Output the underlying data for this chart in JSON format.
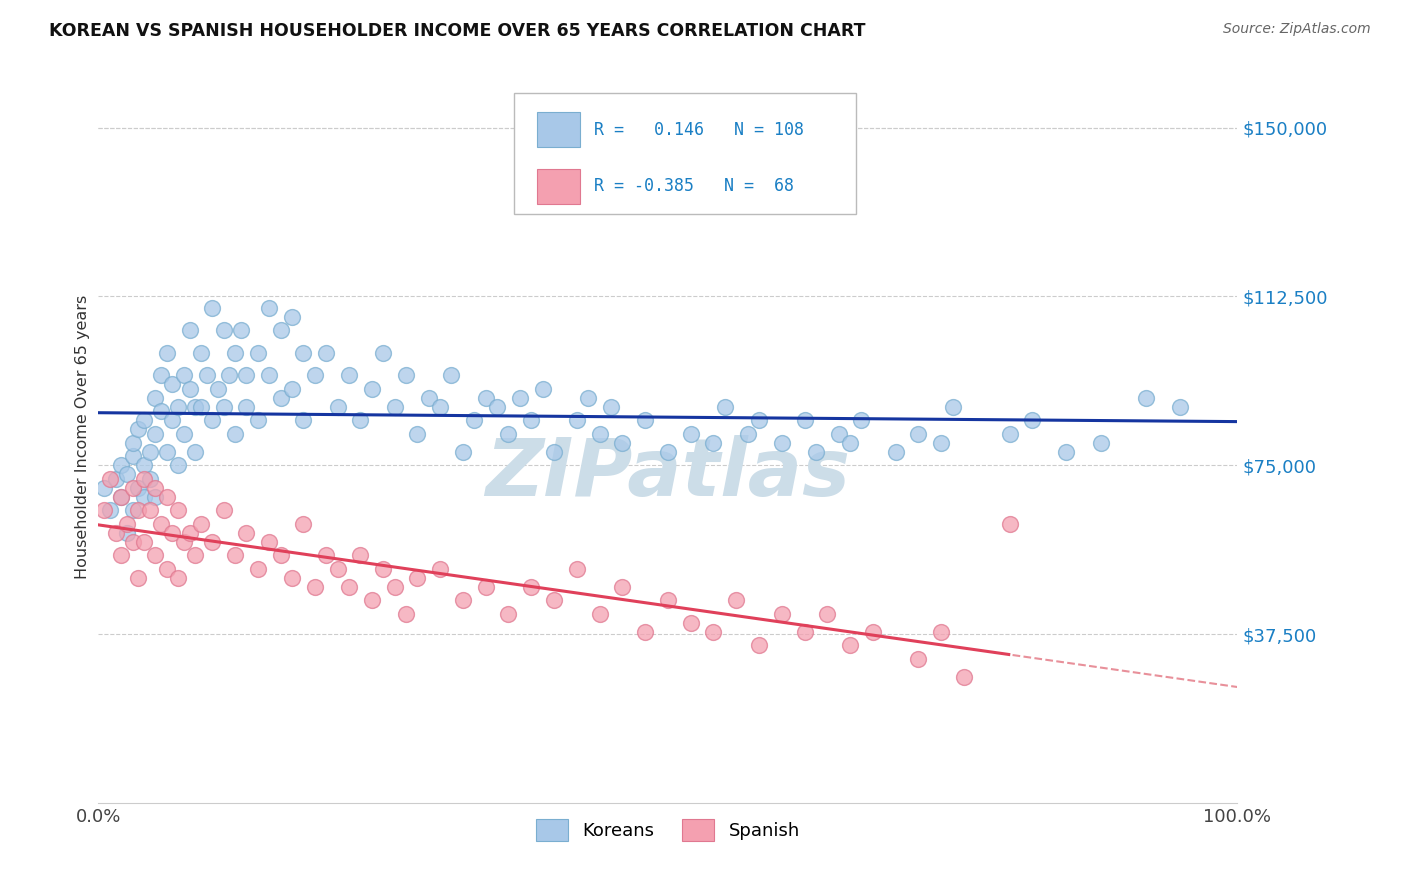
{
  "title": "KOREAN VS SPANISH HOUSEHOLDER INCOME OVER 65 YEARS CORRELATION CHART",
  "source": "Source: ZipAtlas.com",
  "ylabel": "Householder Income Over 65 years",
  "ytick_labels": [
    "$37,500",
    "$75,000",
    "$112,500",
    "$150,000"
  ],
  "ytick_values": [
    37500,
    75000,
    112500,
    150000
  ],
  "ylim": [
    0,
    162500
  ],
  "xlim": [
    0.0,
    1.0
  ],
  "korean_R": 0.146,
  "korean_N": 108,
  "spanish_R": -0.385,
  "spanish_N": 68,
  "korean_color": "#a8c8e8",
  "spanish_color": "#f4a0b0",
  "korean_edge_color": "#7aaed0",
  "spanish_edge_color": "#e07890",
  "trend_korean_color": "#1535a0",
  "trend_spanish_color": "#e0405a",
  "trend_spanish_dash_color": "#e8909a",
  "background_color": "#ffffff",
  "watermark": "ZIPatlas",
  "watermark_color": "#ccdde8",
  "legend_box_color": "#aaaaaa",
  "legend_text_color": "#1a7fc4",
  "korean_x": [
    0.005,
    0.01,
    0.015,
    0.02,
    0.02,
    0.025,
    0.025,
    0.03,
    0.03,
    0.03,
    0.035,
    0.035,
    0.04,
    0.04,
    0.04,
    0.045,
    0.045,
    0.05,
    0.05,
    0.05,
    0.055,
    0.055,
    0.06,
    0.06,
    0.065,
    0.065,
    0.07,
    0.07,
    0.075,
    0.075,
    0.08,
    0.08,
    0.085,
    0.085,
    0.09,
    0.09,
    0.095,
    0.1,
    0.1,
    0.105,
    0.11,
    0.11,
    0.115,
    0.12,
    0.12,
    0.125,
    0.13,
    0.13,
    0.14,
    0.14,
    0.15,
    0.15,
    0.16,
    0.16,
    0.17,
    0.17,
    0.18,
    0.18,
    0.19,
    0.2,
    0.21,
    0.22,
    0.23,
    0.24,
    0.25,
    0.26,
    0.27,
    0.28,
    0.29,
    0.3,
    0.31,
    0.32,
    0.33,
    0.34,
    0.35,
    0.36,
    0.37,
    0.38,
    0.39,
    0.4,
    0.42,
    0.43,
    0.44,
    0.45,
    0.46,
    0.48,
    0.5,
    0.52,
    0.54,
    0.55,
    0.57,
    0.58,
    0.6,
    0.62,
    0.63,
    0.65,
    0.66,
    0.67,
    0.7,
    0.72,
    0.74,
    0.75,
    0.8,
    0.82,
    0.85,
    0.88,
    0.92,
    0.95
  ],
  "korean_y": [
    70000,
    65000,
    72000,
    68000,
    75000,
    60000,
    73000,
    77000,
    65000,
    80000,
    70000,
    83000,
    75000,
    68000,
    85000,
    78000,
    72000,
    90000,
    82000,
    68000,
    95000,
    87000,
    100000,
    78000,
    93000,
    85000,
    88000,
    75000,
    95000,
    82000,
    105000,
    92000,
    88000,
    78000,
    100000,
    88000,
    95000,
    110000,
    85000,
    92000,
    105000,
    88000,
    95000,
    100000,
    82000,
    105000,
    95000,
    88000,
    100000,
    85000,
    110000,
    95000,
    105000,
    90000,
    108000,
    92000,
    100000,
    85000,
    95000,
    100000,
    88000,
    95000,
    85000,
    92000,
    100000,
    88000,
    95000,
    82000,
    90000,
    88000,
    95000,
    78000,
    85000,
    90000,
    88000,
    82000,
    90000,
    85000,
    92000,
    78000,
    85000,
    90000,
    82000,
    88000,
    80000,
    85000,
    78000,
    82000,
    80000,
    88000,
    82000,
    85000,
    80000,
    85000,
    78000,
    82000,
    80000,
    85000,
    78000,
    82000,
    80000,
    88000,
    82000,
    85000,
    78000,
    80000,
    90000,
    88000
  ],
  "spanish_x": [
    0.005,
    0.01,
    0.015,
    0.02,
    0.02,
    0.025,
    0.03,
    0.03,
    0.035,
    0.035,
    0.04,
    0.04,
    0.045,
    0.05,
    0.05,
    0.055,
    0.06,
    0.06,
    0.065,
    0.07,
    0.07,
    0.075,
    0.08,
    0.085,
    0.09,
    0.1,
    0.11,
    0.12,
    0.13,
    0.14,
    0.15,
    0.16,
    0.17,
    0.18,
    0.19,
    0.2,
    0.21,
    0.22,
    0.23,
    0.24,
    0.25,
    0.26,
    0.27,
    0.28,
    0.3,
    0.32,
    0.34,
    0.36,
    0.38,
    0.4,
    0.42,
    0.44,
    0.46,
    0.48,
    0.5,
    0.52,
    0.54,
    0.56,
    0.58,
    0.6,
    0.62,
    0.64,
    0.66,
    0.68,
    0.72,
    0.74,
    0.76,
    0.8
  ],
  "spanish_y": [
    65000,
    72000,
    60000,
    68000,
    55000,
    62000,
    70000,
    58000,
    65000,
    50000,
    72000,
    58000,
    65000,
    70000,
    55000,
    62000,
    68000,
    52000,
    60000,
    65000,
    50000,
    58000,
    60000,
    55000,
    62000,
    58000,
    65000,
    55000,
    60000,
    52000,
    58000,
    55000,
    50000,
    62000,
    48000,
    55000,
    52000,
    48000,
    55000,
    45000,
    52000,
    48000,
    42000,
    50000,
    52000,
    45000,
    48000,
    42000,
    48000,
    45000,
    52000,
    42000,
    48000,
    38000,
    45000,
    40000,
    38000,
    45000,
    35000,
    42000,
    38000,
    42000,
    35000,
    38000,
    32000,
    38000,
    28000,
    62000
  ]
}
